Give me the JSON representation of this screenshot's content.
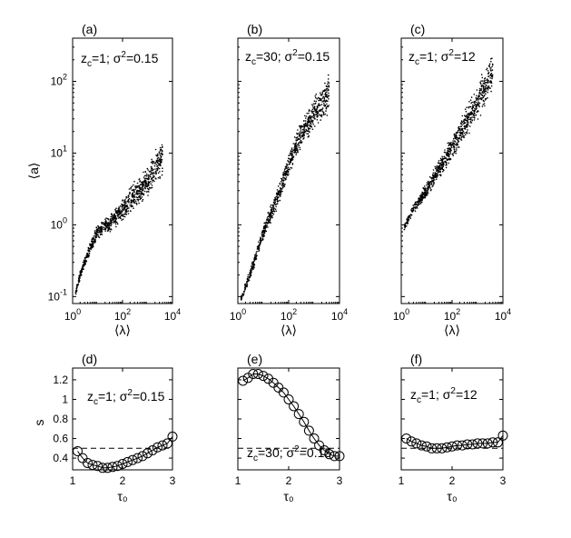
{
  "chart_data": [
    {
      "type": "scatter",
      "panel": "(a)",
      "annotation": {
        "base": "z",
        "sub": "c",
        "mid": "=1; σ",
        "sup": "2",
        "tail": "=0.15"
      },
      "xlabel": "⟨λ⟩",
      "ylabel": "⟨a⟩",
      "xscale": "log",
      "yscale": "log",
      "xlim": [
        1,
        10000
      ],
      "ylim": [
        0.08,
        400
      ],
      "xticks": [
        {
          "v": 1,
          "b": "10",
          "e": "0"
        },
        {
          "v": 100,
          "b": "10",
          "e": "2"
        },
        {
          "v": 10000,
          "b": "10",
          "e": "4"
        }
      ],
      "yticks": [
        {
          "v": 0.1,
          "b": "10",
          "e": "-1"
        },
        {
          "v": 1,
          "b": "10",
          "e": "0"
        },
        {
          "v": 10,
          "b": "10",
          "e": "1"
        },
        {
          "v": 100,
          "b": "10",
          "e": "2"
        }
      ],
      "trend": [
        [
          1.3,
          0.11
        ],
        [
          2,
          0.2
        ],
        [
          3,
          0.3
        ],
        [
          6,
          0.55
        ],
        [
          10,
          0.8
        ],
        [
          30,
          1.05
        ],
        [
          100,
          1.6
        ],
        [
          300,
          2.5
        ],
        [
          1000,
          4
        ],
        [
          4000,
          9
        ]
      ]
    },
    {
      "type": "scatter",
      "panel": "(b)",
      "annotation": {
        "base": "z",
        "sub": "c",
        "mid": "=30; σ",
        "sup": "2",
        "tail": "=0.15"
      },
      "xlabel": "⟨λ⟩",
      "ylabel": "",
      "xscale": "log",
      "yscale": "log",
      "xlim": [
        1,
        10000
      ],
      "ylim": [
        0.08,
        400
      ],
      "xticks": [
        {
          "v": 1,
          "b": "10",
          "e": "0"
        },
        {
          "v": 100,
          "b": "10",
          "e": "2"
        },
        {
          "v": 10000,
          "b": "10",
          "e": "4"
        }
      ],
      "yticks": [],
      "trend": [
        [
          1.3,
          0.09
        ],
        [
          3,
          0.2
        ],
        [
          10,
          0.8
        ],
        [
          30,
          2
        ],
        [
          60,
          4
        ],
        [
          100,
          7
        ],
        [
          300,
          18
        ],
        [
          1000,
          35
        ],
        [
          4000,
          70
        ]
      ]
    },
    {
      "type": "scatter",
      "panel": "(c)",
      "annotation": {
        "base": "z",
        "sub": "c",
        "mid": "=1; σ",
        "sup": "2",
        "tail": "=12"
      },
      "xlabel": "⟨λ⟩",
      "ylabel": "",
      "xscale": "log",
      "yscale": "log",
      "xlim": [
        1,
        10000
      ],
      "ylim": [
        0.08,
        400
      ],
      "xticks": [
        {
          "v": 1,
          "b": "10",
          "e": "0"
        },
        {
          "v": 100,
          "b": "10",
          "e": "2"
        },
        {
          "v": 10000,
          "b": "10",
          "e": "4"
        }
      ],
      "yticks": [],
      "trend": [
        [
          1.3,
          0.9
        ],
        [
          3,
          1.7
        ],
        [
          10,
          3
        ],
        [
          30,
          6
        ],
        [
          100,
          12
        ],
        [
          300,
          25
        ],
        [
          1000,
          50
        ],
        [
          4000,
          140
        ]
      ]
    },
    {
      "type": "line",
      "panel": "(d)",
      "annotation": {
        "base": "z",
        "sub": "c",
        "mid": "=1; σ",
        "sup": "2",
        "tail": "=0.15"
      },
      "xlabel": "τ₀",
      "ylabel": "s",
      "xlim": [
        1,
        3
      ],
      "ylim": [
        0.28,
        1.32
      ],
      "xticks": [
        1,
        2,
        3
      ],
      "yticks": [
        0.4,
        0.6,
        0.8,
        1,
        1.2
      ],
      "reference": 0.5,
      "x": [
        1.1,
        1.2,
        1.3,
        1.4,
        1.5,
        1.6,
        1.7,
        1.8,
        1.9,
        2.0,
        2.1,
        2.2,
        2.3,
        2.4,
        2.5,
        2.6,
        2.7,
        2.8,
        2.9,
        3.0
      ],
      "y": [
        0.47,
        0.4,
        0.35,
        0.33,
        0.32,
        0.3,
        0.3,
        0.31,
        0.32,
        0.34,
        0.36,
        0.38,
        0.4,
        0.42,
        0.45,
        0.48,
        0.51,
        0.53,
        0.55,
        0.62
      ]
    },
    {
      "type": "line",
      "panel": "(e)",
      "annotation": {
        "base": "z",
        "sub": "c",
        "mid": "=30; σ",
        "sup": "2",
        "tail": "=0.15"
      },
      "xlabel": "τ₀",
      "ylabel": "",
      "xlim": [
        1,
        3
      ],
      "ylim": [
        0.28,
        1.32
      ],
      "xticks": [
        1,
        2,
        3
      ],
      "yticks": [],
      "reference": 0.5,
      "x": [
        1.1,
        1.2,
        1.3,
        1.4,
        1.5,
        1.6,
        1.7,
        1.8,
        1.9,
        2.0,
        2.1,
        2.2,
        2.3,
        2.4,
        2.5,
        2.6,
        2.7,
        2.8,
        2.9,
        3.0
      ],
      "y": [
        1.19,
        1.22,
        1.26,
        1.26,
        1.24,
        1.21,
        1.17,
        1.12,
        1.07,
        1.0,
        0.93,
        0.85,
        0.77,
        0.68,
        0.6,
        0.53,
        0.48,
        0.44,
        0.42,
        0.42
      ]
    },
    {
      "type": "line",
      "panel": "(f)",
      "annotation": {
        "base": "z",
        "sub": "c",
        "mid": "=1; σ",
        "sup": "2",
        "tail": "=12"
      },
      "xlabel": "τ₀",
      "ylabel": "",
      "xlim": [
        1,
        3
      ],
      "ylim": [
        0.28,
        1.32
      ],
      "xticks": [
        1,
        2,
        3
      ],
      "yticks": [],
      "reference": 0.5,
      "x": [
        1.1,
        1.2,
        1.3,
        1.4,
        1.5,
        1.6,
        1.7,
        1.8,
        1.9,
        2.0,
        2.1,
        2.2,
        2.3,
        2.4,
        2.5,
        2.6,
        2.7,
        2.8,
        2.9,
        3.0
      ],
      "y": [
        0.6,
        0.57,
        0.55,
        0.53,
        0.52,
        0.5,
        0.5,
        0.5,
        0.51,
        0.52,
        0.53,
        0.53,
        0.54,
        0.54,
        0.55,
        0.55,
        0.55,
        0.56,
        0.56,
        0.63
      ]
    }
  ]
}
